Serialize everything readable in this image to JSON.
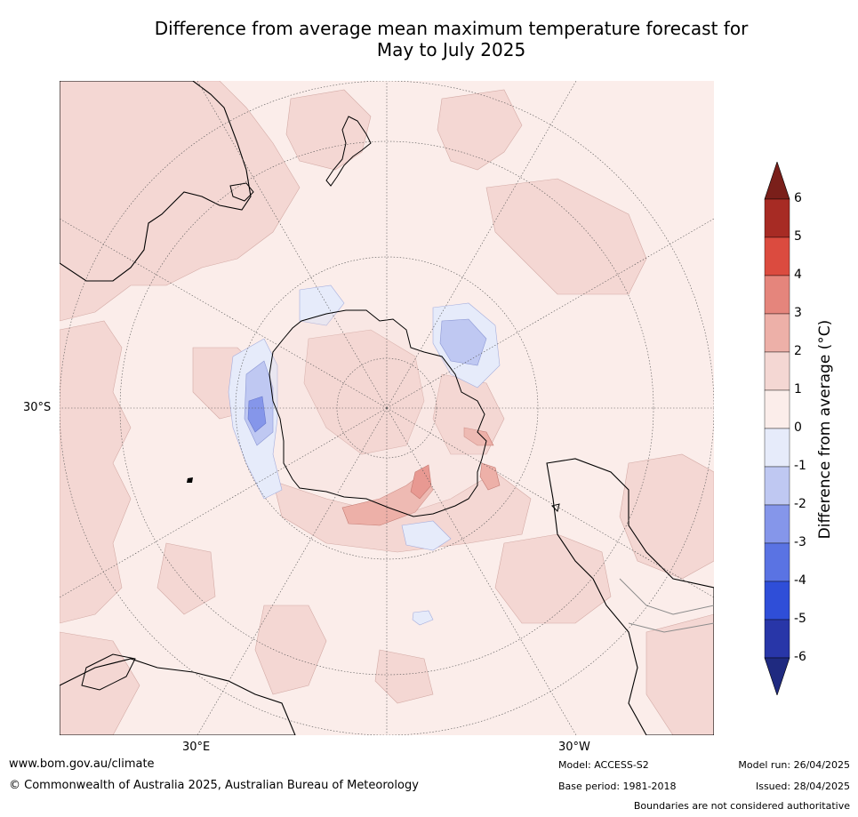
{
  "title": {
    "line1": "Difference from average mean maximum temperature forecast for",
    "line2": "May to July 2025"
  },
  "map": {
    "projection": "south-polar-stereographic",
    "latitude_labels": [
      "30°S"
    ],
    "longitude_labels": [
      "30°E",
      "30°W"
    ],
    "land_outline_color": "#000000",
    "border_color": "#8c8c8c",
    "gridline_style": "dotted"
  },
  "colorbar": {
    "label": "Difference from average (°C)",
    "ticks": [
      "6",
      "5",
      "4",
      "3",
      "2",
      "1",
      "0",
      "-1",
      "-2",
      "-3",
      "-4",
      "-5",
      "-6"
    ],
    "over_color": "#7a1f1a",
    "under_color": "#1f2a80",
    "bins": [
      {
        "range": "5 to 6",
        "color": "#a72b24"
      },
      {
        "range": "4 to 5",
        "color": "#db4b3f"
      },
      {
        "range": "3 to 4",
        "color": "#e5857c"
      },
      {
        "range": "2 to 3",
        "color": "#edb0a8"
      },
      {
        "range": "1 to 2",
        "color": "#f4d7d3"
      },
      {
        "range": "0 to 1",
        "color": "#fbedea"
      },
      {
        "range": "-1 to 0",
        "color": "#e6ebfa"
      },
      {
        "range": "-2 to -1",
        "color": "#bfc8f2"
      },
      {
        "range": "-3 to -2",
        "color": "#8596ea"
      },
      {
        "range": "-4 to -3",
        "color": "#5a73e3"
      },
      {
        "range": "-5 to -4",
        "color": "#2f4ed8"
      },
      {
        "range": "-6 to -5",
        "color": "#2836a8"
      }
    ]
  },
  "footer": {
    "url": "www.bom.gov.au/climate",
    "copyright": "© Commonwealth of Australia 2025, Australian Bureau of Meteorology",
    "model": "Model: ACCESS-S2",
    "base_period": "Base period: 1981-2018",
    "model_run": "Model run: 26/04/2025",
    "issued": "Issued: 28/04/2025",
    "disclaimer": "Boundaries are not considered authoritative"
  }
}
